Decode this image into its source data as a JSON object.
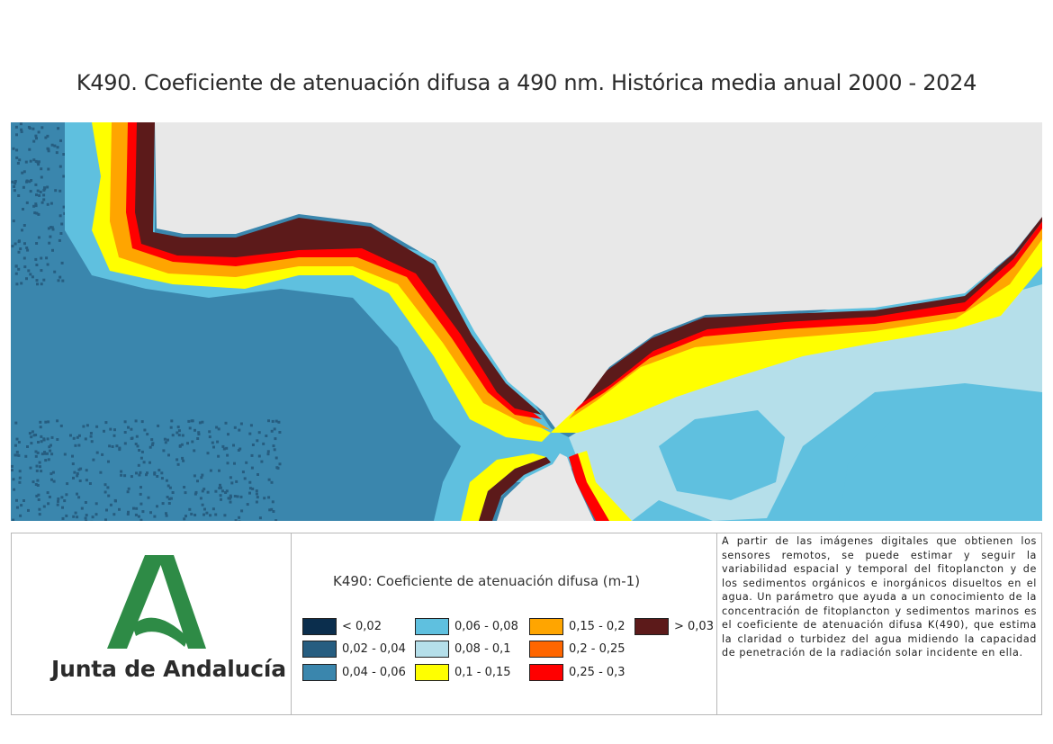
{
  "title": "K490. Coeficiente de atenuación difusa a 490 nm. Histórica media anual 2000 - 2024",
  "logo": {
    "brand": "Junta de Andalucía",
    "primary_color": "#2e8b46"
  },
  "legend": {
    "title": "K490: Coeficiente de atenuación difusa (m-1)",
    "items": [
      {
        "label": "< 0,02",
        "color": "#0b2e4d"
      },
      {
        "label": "0,02 - 0,04",
        "color": "#265d80"
      },
      {
        "label": "0,04 - 0,06",
        "color": "#3a86ad"
      },
      {
        "label": "0,06 - 0,08",
        "color": "#5fc0df"
      },
      {
        "label": "0,08 - 0,1",
        "color": "#b5dfea"
      },
      {
        "label": "0,1 - 0,15",
        "color": "#ffff00"
      },
      {
        "label": "0,15 - 0,2",
        "color": "#ffa500"
      },
      {
        "label": "0,2 - 0,25",
        "color": "#ff6600"
      },
      {
        "label": "0,25 - 0,3",
        "color": "#ff0000"
      },
      {
        "label": "> 0,03",
        "color": "#5c1a1a"
      }
    ]
  },
  "description": "A partir de las imágenes digitales que obtienen los sensores remotos, se puede estimar y seguir la variabilidad espacial y temporal del fitoplancton y de los sedimentos orgánicos e inorgánicos disueltos en el agua. Un parámetro que ayuda a un conocimiento de la concentración de fitoplancton y sedimentos marinos es el coeficiente de atenuación difusa K(490), que estima la claridad o turbidez del agua midiendo la capacidad de penetración de la radiación solar incidente en ella.",
  "map_colors": {
    "land": "#e8e8e8",
    "deep_ocean": "#3a86ad",
    "speckle": "#265d80",
    "near_shore": "#5fc0df",
    "mediterranean_light": "#b5dfea",
    "band_yellow": "#ffff00",
    "band_orange": "#ffa500",
    "band_dark_orange": "#ff6600",
    "band_red": "#ff0000",
    "band_maroon": "#5c1a1a"
  }
}
